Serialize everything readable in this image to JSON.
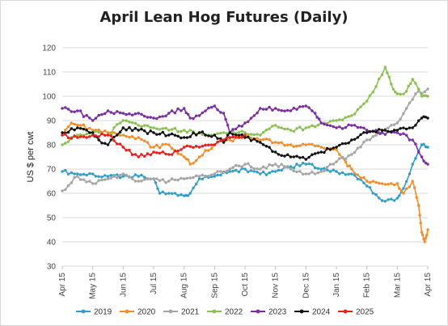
{
  "chart_data": {
    "type": "line",
    "title": "April Lean Hog Futures (Daily)",
    "xlabel": "",
    "ylabel": "US $ per cwt",
    "ylim": [
      30,
      120
    ],
    "yticks": [
      30,
      40,
      50,
      60,
      70,
      80,
      90,
      100,
      110,
      120
    ],
    "xticks": [
      "Apr 15",
      "May 15",
      "Jun 15",
      "Jul 15",
      "Aug 15",
      "Sep 15",
      "Oct 15",
      "Nov 15",
      "Dec 15",
      "Jan 15",
      "Feb 15",
      "Mar 15",
      "Apr 15"
    ],
    "grid": true,
    "legend": "bottom",
    "x_unit": "month offset from Apr 15",
    "series": [
      {
        "name": "2019",
        "color": "#2e9fcb",
        "points": [
          [
            0,
            69
          ],
          [
            0.5,
            68
          ],
          [
            1,
            68
          ],
          [
            1.5,
            67
          ],
          [
            2,
            67
          ],
          [
            2.5,
            67
          ],
          [
            3,
            66
          ],
          [
            3.2,
            60
          ],
          [
            3.5,
            60
          ],
          [
            4,
            59
          ],
          [
            4.2,
            60
          ],
          [
            4.5,
            66
          ],
          [
            5,
            67
          ],
          [
            5.5,
            69
          ],
          [
            6,
            70
          ],
          [
            6.5,
            68
          ],
          [
            7,
            69
          ],
          [
            7.5,
            71
          ],
          [
            8,
            72
          ],
          [
            8.5,
            70
          ],
          [
            9,
            69
          ],
          [
            9.5,
            68
          ],
          [
            10,
            63
          ],
          [
            10.5,
            57
          ],
          [
            11,
            58
          ],
          [
            11.2,
            62
          ],
          [
            11.5,
            72
          ],
          [
            11.8,
            80
          ],
          [
            12,
            79
          ]
        ]
      },
      {
        "name": "2020",
        "color": "#f28e2b",
        "points": [
          [
            0,
            84
          ],
          [
            0.3,
            89
          ],
          [
            0.6,
            88
          ],
          [
            1,
            86
          ],
          [
            1.5,
            85
          ],
          [
            2,
            84
          ],
          [
            2.5,
            83
          ],
          [
            3,
            79
          ],
          [
            3.5,
            80
          ],
          [
            4,
            75
          ],
          [
            4.2,
            72
          ],
          [
            4.5,
            75
          ],
          [
            5,
            80
          ],
          [
            5.5,
            82
          ],
          [
            6,
            83
          ],
          [
            6.5,
            82
          ],
          [
            7,
            81
          ],
          [
            7.5,
            80
          ],
          [
            8,
            80
          ],
          [
            8.5,
            79
          ],
          [
            9,
            78
          ],
          [
            9.3,
            73
          ],
          [
            9.5,
            70
          ],
          [
            10,
            65
          ],
          [
            10.5,
            64
          ],
          [
            11,
            64
          ],
          [
            11.2,
            60
          ],
          [
            11.5,
            65
          ],
          [
            11.7,
            55
          ],
          [
            11.8,
            44
          ],
          [
            11.9,
            40
          ],
          [
            12,
            45
          ]
        ]
      },
      {
        "name": "2021",
        "color": "#a5a5a5",
        "points": [
          [
            0,
            61
          ],
          [
            0.5,
            67
          ],
          [
            1,
            64
          ],
          [
            1.5,
            66
          ],
          [
            2,
            68
          ],
          [
            2.5,
            65
          ],
          [
            3,
            66
          ],
          [
            3.5,
            65
          ],
          [
            4,
            66
          ],
          [
            4.5,
            67
          ],
          [
            5,
            68
          ],
          [
            5.5,
            70
          ],
          [
            6,
            72
          ],
          [
            6.5,
            70
          ],
          [
            7,
            72
          ],
          [
            7.5,
            70
          ],
          [
            8,
            68
          ],
          [
            8.5,
            69
          ],
          [
            9,
            73
          ],
          [
            9.5,
            76
          ],
          [
            10,
            82
          ],
          [
            10.5,
            85
          ],
          [
            11,
            89
          ],
          [
            11.3,
            95
          ],
          [
            11.6,
            101
          ],
          [
            12,
            103
          ]
        ]
      },
      {
        "name": "2022",
        "color": "#8cc152",
        "points": [
          [
            0,
            80
          ],
          [
            0.5,
            84
          ],
          [
            1,
            85
          ],
          [
            1.5,
            84
          ],
          [
            2,
            90
          ],
          [
            2.5,
            88
          ],
          [
            3,
            87
          ],
          [
            3.5,
            86
          ],
          [
            4,
            86
          ],
          [
            4.5,
            85
          ],
          [
            5,
            84
          ],
          [
            5.5,
            85
          ],
          [
            6,
            85
          ],
          [
            6.5,
            84
          ],
          [
            7,
            88
          ],
          [
            7.5,
            86
          ],
          [
            8,
            87
          ],
          [
            8.5,
            89
          ],
          [
            9,
            90
          ],
          [
            9.5,
            92
          ],
          [
            10,
            98
          ],
          [
            10.3,
            104
          ],
          [
            10.6,
            112
          ],
          [
            10.8,
            105
          ],
          [
            11,
            101
          ],
          [
            11.3,
            102
          ],
          [
            11.5,
            107
          ],
          [
            11.8,
            100
          ],
          [
            12,
            100
          ]
        ]
      },
      {
        "name": "2023",
        "color": "#7a2ea0",
        "points": [
          [
            0,
            95
          ],
          [
            0.5,
            94
          ],
          [
            1,
            90
          ],
          [
            1.5,
            94
          ],
          [
            2,
            93
          ],
          [
            2.5,
            93
          ],
          [
            3,
            91
          ],
          [
            3.5,
            93
          ],
          [
            4,
            95
          ],
          [
            4.2,
            91
          ],
          [
            4.5,
            92
          ],
          [
            5,
            96
          ],
          [
            5.3,
            93
          ],
          [
            5.5,
            85
          ],
          [
            6,
            89
          ],
          [
            6.5,
            95
          ],
          [
            7,
            95
          ],
          [
            7.5,
            94
          ],
          [
            8,
            96
          ],
          [
            8.3,
            93
          ],
          [
            8.5,
            89
          ],
          [
            9,
            87
          ],
          [
            9.5,
            88
          ],
          [
            10,
            86
          ],
          [
            10.3,
            86
          ],
          [
            10.5,
            85
          ],
          [
            11,
            85
          ],
          [
            11.5,
            82
          ],
          [
            11.8,
            75
          ],
          [
            12,
            72
          ]
        ]
      },
      {
        "name": "2024",
        "color": "#111111",
        "points": [
          [
            0,
            85
          ],
          [
            0.5,
            87
          ],
          [
            1,
            85
          ],
          [
            1.2,
            82
          ],
          [
            1.5,
            80
          ],
          [
            2,
            87
          ],
          [
            2.5,
            86
          ],
          [
            3,
            85
          ],
          [
            3.5,
            84
          ],
          [
            4,
            83
          ],
          [
            4.5,
            85
          ],
          [
            5,
            84
          ],
          [
            5.3,
            81
          ],
          [
            5.5,
            85
          ],
          [
            6,
            83
          ],
          [
            6.5,
            81
          ],
          [
            7,
            77
          ],
          [
            7.5,
            75
          ],
          [
            8,
            74
          ],
          [
            8.5,
            77
          ],
          [
            9,
            79
          ],
          [
            9.5,
            82
          ],
          [
            10,
            85
          ],
          [
            10.5,
            86
          ],
          [
            11,
            86
          ],
          [
            11.5,
            87
          ],
          [
            11.8,
            91
          ],
          [
            12,
            91
          ]
        ]
      },
      {
        "name": "2025",
        "color": "#e3201c",
        "points": [
          [
            0,
            84
          ],
          [
            0.5,
            83
          ],
          [
            1,
            84
          ],
          [
            1.5,
            84
          ],
          [
            2,
            79
          ],
          [
            2.5,
            75
          ],
          [
            3,
            77
          ],
          [
            3.5,
            76
          ],
          [
            4,
            79
          ],
          [
            4.5,
            79
          ],
          [
            5,
            80
          ],
          [
            5.5,
            83
          ],
          [
            6,
            84
          ]
        ]
      }
    ]
  }
}
